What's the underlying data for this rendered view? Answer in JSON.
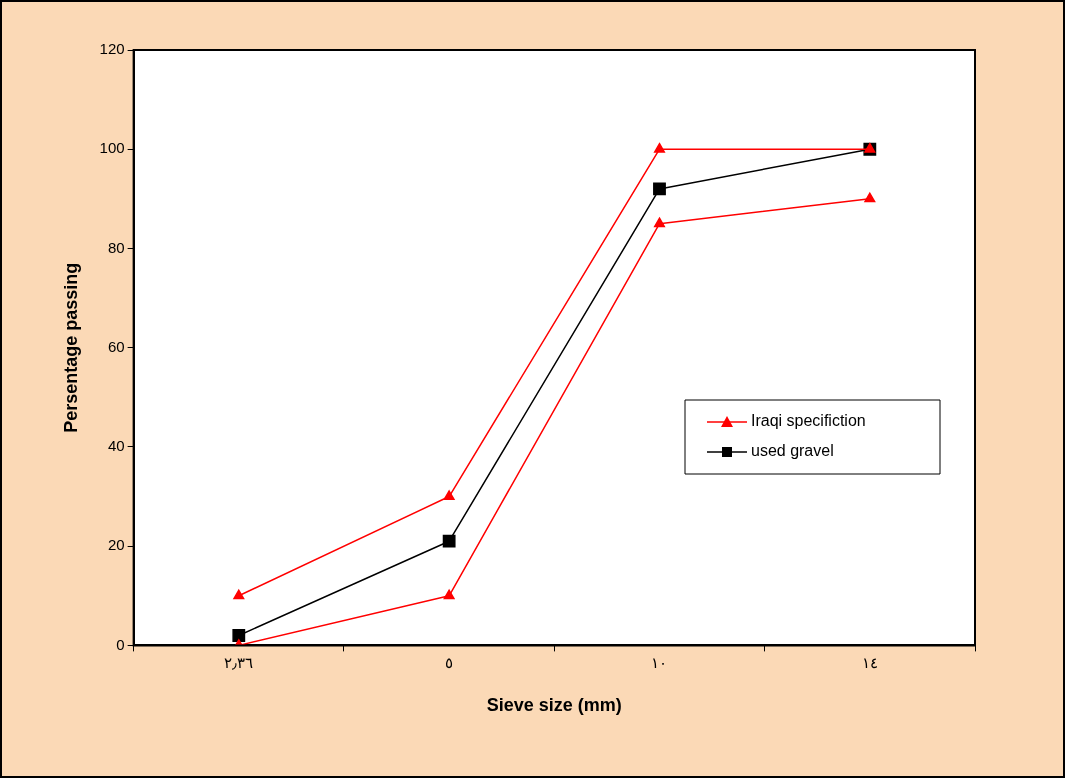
{
  "chart_data": {
    "type": "line",
    "xlabel": "Sieve size (mm)",
    "ylabel": "Persentage passing",
    "categories": [
      "٢٫٣٦",
      "٥",
      "١٠",
      "١٤"
    ],
    "ylim": [
      0,
      120
    ],
    "yticks": [
      0,
      20,
      40,
      60,
      80,
      100,
      120
    ],
    "grid": false,
    "legend": "right",
    "line_style": "solid",
    "series": [
      {
        "name": "Iraqi specifiction",
        "color": "#ff0000",
        "marker": "triangle",
        "values": [
          10,
          30,
          100,
          100
        ]
      },
      {
        "color": "#ff0000",
        "marker": "triangle",
        "values": [
          0,
          10,
          85,
          90
        ]
      },
      {
        "name": "used gravel",
        "color": "#000000",
        "marker": "square",
        "values": [
          2,
          21,
          92,
          100
        ]
      }
    ]
  }
}
